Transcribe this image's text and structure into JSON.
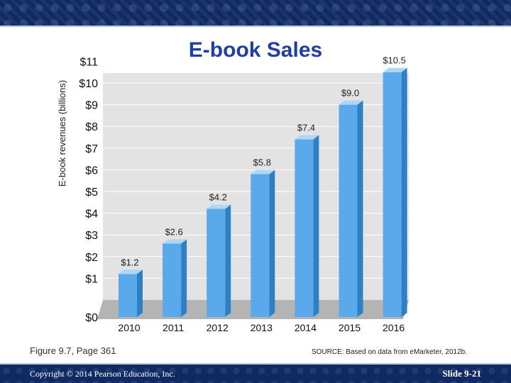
{
  "slide": {
    "title": "E-book Sales",
    "figure_caption": "Figure 9.7, Page 361",
    "source": "SOURCE: Based on data from eMarketer, 2012b.",
    "copyright": "Copyright © 2014 Pearson Education, Inc.",
    "slide_number": "Slide 9-21"
  },
  "colors": {
    "header_band": "#0f2a63",
    "title": "#1f3fa6",
    "bar_face": "#5aa9ea",
    "bar_top": "#aed6f6",
    "bar_side": "#2f7fc4",
    "plot_background": "#e3e3e3",
    "floor": "#b4b4b4"
  },
  "chart_data": {
    "type": "bar",
    "title": "",
    "xlabel": "",
    "ylabel": "E-book revenues (billions)",
    "categories": [
      "2010",
      "2011",
      "2012",
      "2013",
      "2014",
      "2015",
      "2016"
    ],
    "values": [
      1.2,
      2.6,
      4.2,
      5.8,
      7.4,
      9.0,
      10.5
    ],
    "data_labels": [
      "$1.2",
      "$2.6",
      "$4.2",
      "$5.8",
      "$7.4",
      "$9.0",
      "$10.5"
    ],
    "yticks": [
      "$0",
      "$1",
      "$2",
      "$3",
      "$4",
      "$5",
      "$6",
      "$7",
      "$8",
      "$9",
      "$10",
      "$11"
    ],
    "ylim": [
      0,
      11
    ],
    "grid": true,
    "legend": "none"
  }
}
